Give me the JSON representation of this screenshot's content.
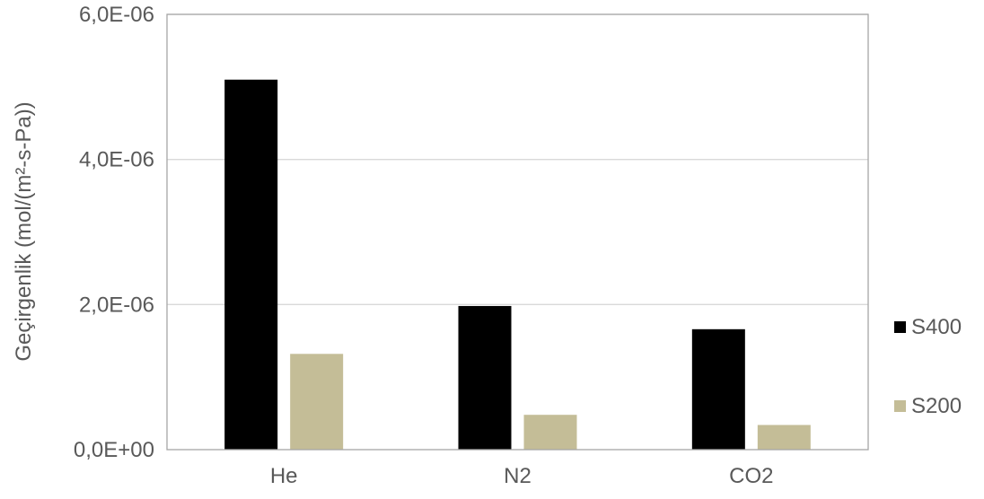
{
  "chart_data": {
    "type": "bar",
    "categories": [
      "He",
      "N2",
      "CO2"
    ],
    "series": [
      {
        "name": "S400",
        "color": "#000000",
        "values": [
          5.1e-06,
          1.98e-06,
          1.66e-06
        ]
      },
      {
        "name": "S200",
        "color": "#c4bd97",
        "values": [
          1.32e-06,
          4.8e-07,
          3.4e-07
        ]
      }
    ],
    "ylabel": "Geçirgenlik (mol/(m²-s-Pa))",
    "xlabel": "",
    "ylim": [
      0,
      6e-06
    ],
    "yticks": [
      {
        "value": 0,
        "label": "0,0E+00"
      },
      {
        "value": 2e-06,
        "label": "2,0E-06"
      },
      {
        "value": 4e-06,
        "label": "4,0E-06"
      },
      {
        "value": 6e-06,
        "label": "6,0E-06"
      }
    ],
    "grid": true,
    "legend_position": "right",
    "gridline_color": "#d9d9d9",
    "axis_color": "#a6a6a6"
  }
}
